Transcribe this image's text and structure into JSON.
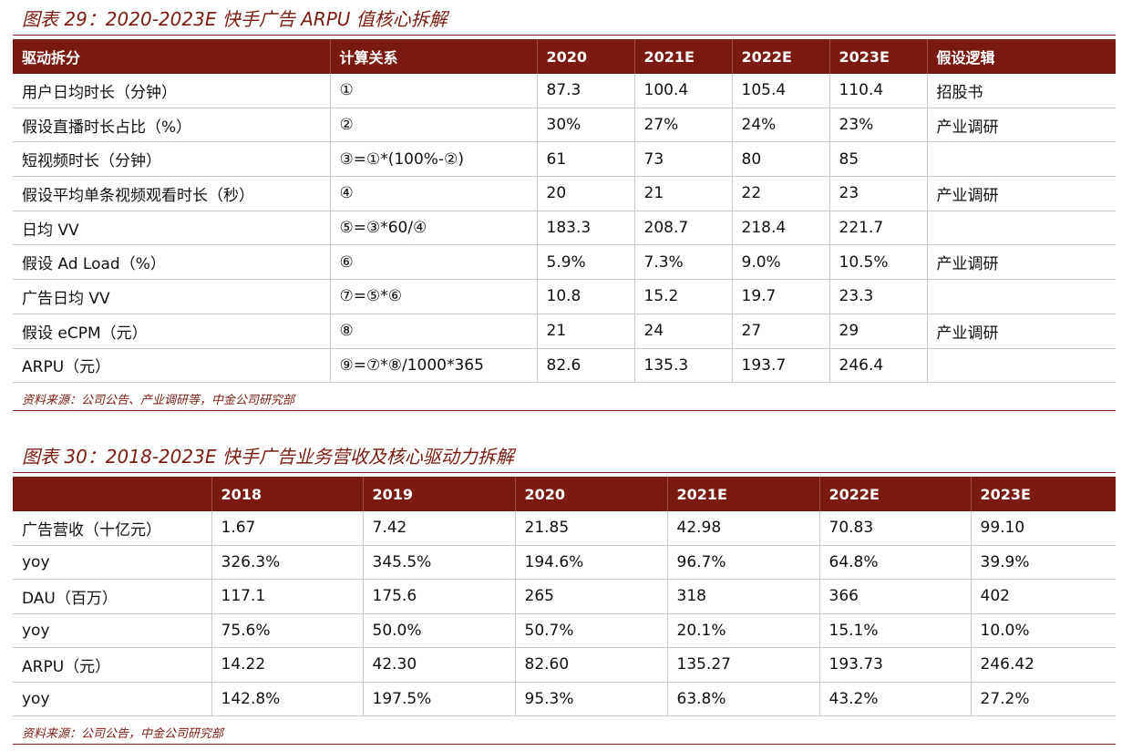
{
  "table1": {
    "title": "图表 29：2020-2023E 快手广告 ARPU 值核心拆解",
    "headers": [
      "驱动拆分",
      "计算关系",
      "2020",
      "2021E",
      "2022E",
      "2023E",
      "假设逻辑"
    ],
    "rows": [
      [
        "用户日均时长（分钟）",
        "①",
        "87.3",
        "100.4",
        "105.4",
        "110.4",
        "招股书"
      ],
      [
        "假设直播时长占比（%）",
        "②",
        "30%",
        "27%",
        "24%",
        "23%",
        "产业调研"
      ],
      [
        "短视频时长（分钟）",
        "③=①*(100%-②)",
        "61",
        "73",
        "80",
        "85",
        ""
      ],
      [
        "假设平均单条视频观看时长（秒）",
        "④",
        "20",
        "21",
        "22",
        "23",
        "产业调研"
      ],
      [
        "日均 VV",
        "⑤=③*60/④",
        "183.3",
        "208.7",
        "218.4",
        "221.7",
        ""
      ],
      [
        "假设 Ad Load（%）",
        "⑥",
        "5.9%",
        "7.3%",
        "9.0%",
        "10.5%",
        "产业调研"
      ],
      [
        "广告日均 VV",
        "⑦=⑤*⑥",
        "10.8",
        "15.2",
        "19.7",
        "23.3",
        ""
      ],
      [
        "假设 eCPM（元）",
        "⑧",
        "21",
        "24",
        "27",
        "29",
        "产业调研"
      ],
      [
        "ARPU（元）",
        "⑨=⑦*⑧/1000*365",
        "82.6",
        "135.3",
        "193.7",
        "246.4",
        ""
      ]
    ],
    "source": "资料来源：公司公告、产业调研等，中金公司研究部"
  },
  "table2": {
    "title": "图表 30：2018-2023E 快手广告业务营收及核心驱动力拆解",
    "headers": [
      "",
      "2018",
      "2019",
      "2020",
      "2021E",
      "2022E",
      "2023E"
    ],
    "rows": [
      [
        "广告营收（十亿元）",
        "1.67",
        "7.42",
        "21.85",
        "42.98",
        "70.83",
        "99.10"
      ],
      [
        "yoy",
        "326.3%",
        "345.5%",
        "194.6%",
        "96.7%",
        "64.8%",
        "39.9%"
      ],
      [
        "DAU（百万）",
        "117.1",
        "175.6",
        "265",
        "318",
        "366",
        "402"
      ],
      [
        "yoy",
        "75.6%",
        "50.0%",
        "50.7%",
        "20.1%",
        "15.1%",
        "10.0%"
      ],
      [
        "ARPU（元）",
        "14.22",
        "42.30",
        "82.60",
        "135.27",
        "193.73",
        "246.42"
      ],
      [
        "yoy",
        "142.8%",
        "197.5%",
        "95.3%",
        "63.8%",
        "43.2%",
        "27.2%"
      ]
    ],
    "source": "资料来源：公司公告，中金公司研究部"
  },
  "colors": {
    "header_bg": "#7b1a12",
    "title_text": "#7b1a12",
    "grid": "#c9c9c9"
  }
}
